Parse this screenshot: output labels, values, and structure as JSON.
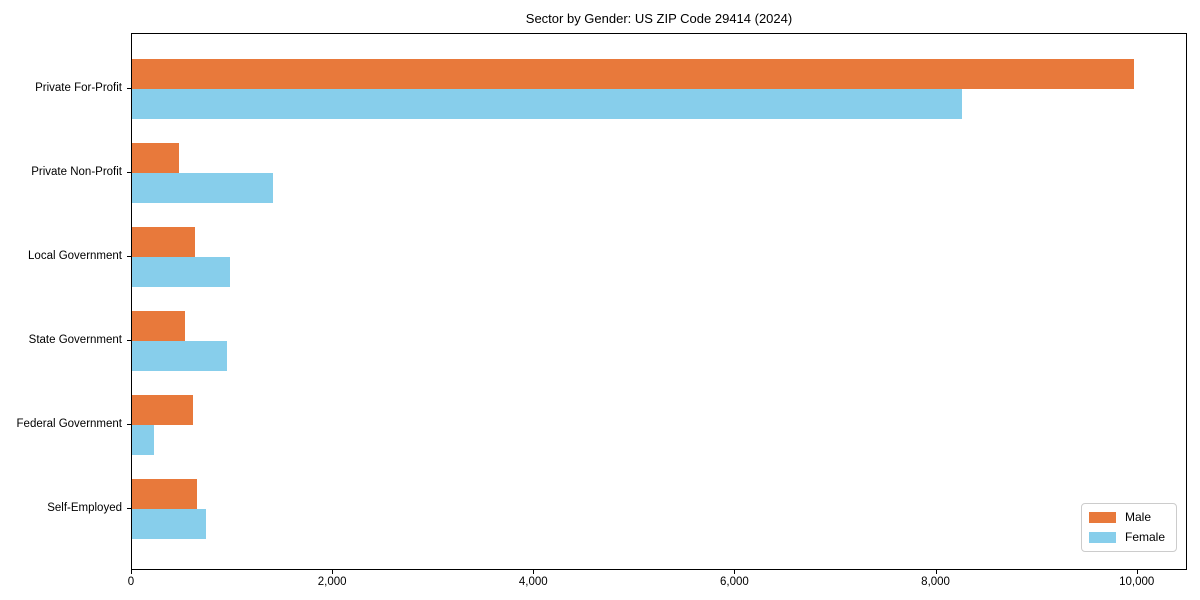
{
  "title": "Sector by Gender: US ZIP Code 29414 (2024)",
  "chart_data": {
    "type": "bar",
    "orientation": "horizontal",
    "title": "Sector by Gender: US ZIP Code 29414 (2024)",
    "categories": [
      "Private For-Profit",
      "Private Non-Profit",
      "Local Government",
      "State Government",
      "Federal Government",
      "Self-Employed"
    ],
    "series": [
      {
        "name": "Male",
        "color": "#e8793b",
        "values": [
          9980,
          465,
          625,
          525,
          605,
          650
        ]
      },
      {
        "name": "Female",
        "color": "#87ceeb",
        "values": [
          8270,
          1400,
          975,
          950,
          220,
          740
        ]
      }
    ],
    "xlabel": "",
    "ylabel": "",
    "x_ticks": [
      0,
      2000,
      4000,
      6000,
      8000,
      10000
    ],
    "x_tick_labels": [
      "0",
      "2,000",
      "4,000",
      "6,000",
      "8,000",
      "10,000"
    ],
    "xlim": [
      0,
      10500
    ],
    "grid": false,
    "legend_position": "lower right",
    "legend_entries": [
      "Male",
      "Female"
    ]
  }
}
